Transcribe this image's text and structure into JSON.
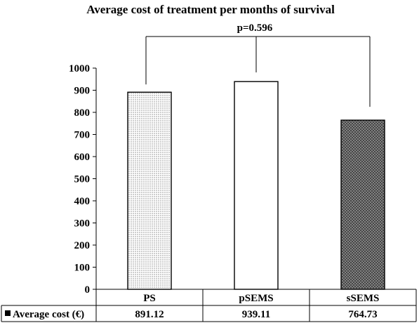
{
  "chart_data": {
    "type": "bar",
    "title": "Average cost of treatment per months of survival",
    "categories": [
      "PS",
      "pSEMS",
      "sSEMS"
    ],
    "series": [
      {
        "name": "Average cost (€)",
        "values": [
          891.12,
          939.11,
          764.73
        ],
        "labels": [
          "891.12",
          "939.11",
          "764.73"
        ]
      }
    ],
    "ylim": [
      0,
      1000
    ],
    "yticks": [
      0,
      100,
      200,
      300,
      400,
      500,
      600,
      700,
      800,
      900,
      1000
    ],
    "grid": false,
    "legend": "data table, bottom-left",
    "bar_fills": [
      "dotted-light",
      "white",
      "crosshatch-dark"
    ],
    "annotation": "p=0.596",
    "colors": {
      "axis": "#000000",
      "bar_outline": "#000000",
      "bar_dark": "#3a3a3a"
    }
  }
}
